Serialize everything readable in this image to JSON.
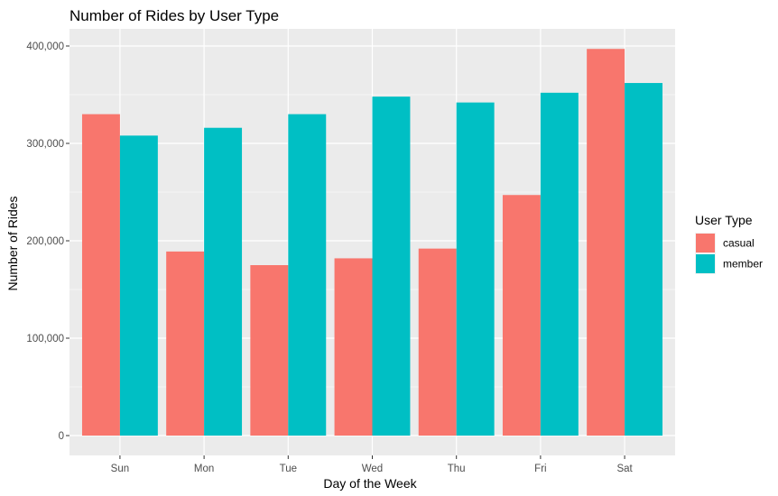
{
  "chart_data": {
    "type": "bar",
    "title": "Number of Rides by User Type",
    "xlabel": "Day of the Week",
    "ylabel": "Number of Rides",
    "categories": [
      "Sun",
      "Mon",
      "Tue",
      "Wed",
      "Thu",
      "Fri",
      "Sat"
    ],
    "series": [
      {
        "name": "casual",
        "color": "#F8766D",
        "values": [
          330000,
          189000,
          175000,
          182000,
          192000,
          247000,
          397000
        ]
      },
      {
        "name": "member",
        "color": "#00BFC4",
        "values": [
          308000,
          316000,
          330000,
          348000,
          342000,
          352000,
          362000
        ]
      }
    ],
    "ylim": [
      0,
      400000
    ],
    "yticks": [
      0,
      100000,
      200000,
      300000,
      400000
    ],
    "ytick_labels": [
      "0",
      "100,000",
      "200,000",
      "300,000",
      "400,000"
    ],
    "legend": {
      "title": "User Type",
      "position": "right"
    },
    "grid": true,
    "panel_background": "#EBEBEB",
    "grid_color": "#FFFFFF"
  }
}
